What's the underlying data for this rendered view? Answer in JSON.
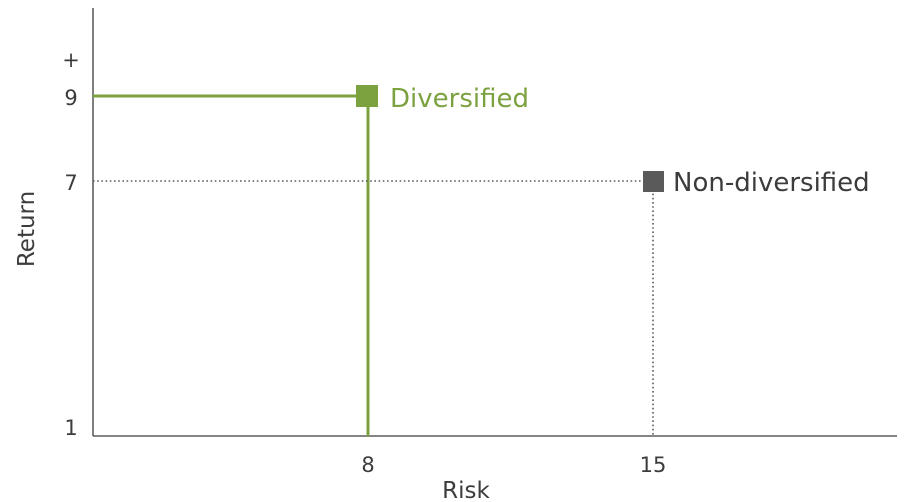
{
  "colors": {
    "axis": "#3c3c3c",
    "diversified": "#7ba23f",
    "non_diversified": "#5a5a5a",
    "text": "#3c3c3c"
  },
  "chart_data": {
    "type": "scatter",
    "xlabel": "Risk",
    "ylabel": "Return",
    "x_tick_labels": [
      "8",
      "15"
    ],
    "y_tick_labels": [
      "1",
      "7",
      "9",
      "+"
    ],
    "series": [
      {
        "name": "Diversified",
        "x": 8,
        "y": 9,
        "color": "#7ba23f",
        "guide_lines": "solid"
      },
      {
        "name": "Non-diversified",
        "x": 15,
        "y": 7,
        "color": "#5a5a5a",
        "guide_lines": "dotted"
      }
    ],
    "grid": false,
    "legend": "none"
  }
}
